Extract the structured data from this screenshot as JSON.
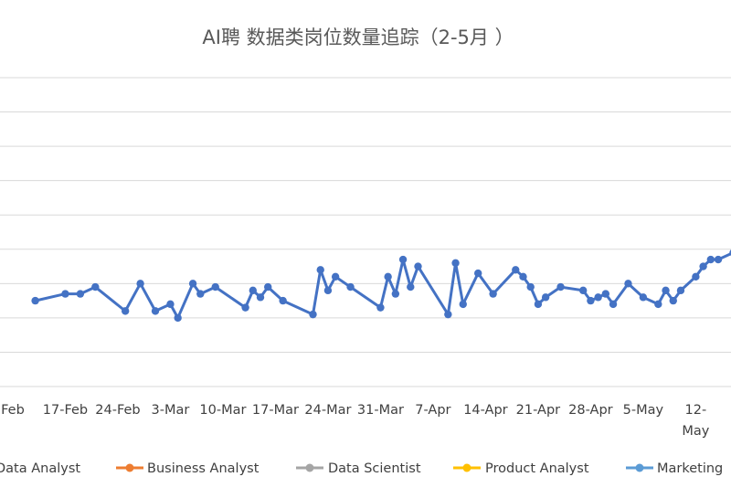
{
  "chart_data": {
    "type": "line",
    "title": "AI聘 数据类岗位数量追踪（2-5月 ）",
    "xlabel": "",
    "ylabel": "",
    "grid": true,
    "legend_position": "bottom",
    "ylim": [
      0,
      9
    ],
    "x_tick_labels": [
      "Feb",
      "17-Feb",
      "24-Feb",
      "3-Mar",
      "10-Mar",
      "17-Mar",
      "24-Mar",
      "31-Mar",
      "7-Apr",
      "14-Apr",
      "21-Apr",
      "28-Apr",
      "5-May",
      "12-\nMay"
    ],
    "x_day_range": [
      -1.7,
      95.7
    ],
    "colors": {
      "Data Analyst": "#4472C4",
      "Business Analyst": "#ED7D31",
      "Data Scientist": "#A5A5A5",
      "Product Analyst": "#FFC000",
      "Marketing": "#5B9BD5"
    },
    "series": [
      {
        "name": "Data Analyst",
        "x": [
          3,
          7,
          9,
          11,
          15,
          17,
          19,
          21,
          22,
          24,
          25,
          27,
          31,
          32,
          33,
          34,
          36,
          40,
          41,
          42,
          43,
          45,
          49,
          50,
          51,
          52,
          53,
          54,
          58,
          59,
          60,
          62,
          64,
          67,
          68,
          69,
          70,
          71,
          73,
          76,
          77,
          78,
          79,
          80,
          82,
          84,
          86,
          87,
          88,
          89,
          91,
          92,
          93,
          94,
          96
        ],
        "y": [
          2.5,
          2.7,
          2.7,
          2.9,
          2.2,
          3.0,
          2.2,
          2.4,
          2.0,
          3.0,
          2.7,
          2.9,
          2.3,
          2.8,
          2.6,
          2.9,
          2.5,
          2.1,
          3.4,
          2.8,
          3.2,
          2.9,
          2.3,
          3.2,
          2.7,
          3.7,
          2.9,
          3.5,
          2.1,
          3.6,
          2.4,
          3.3,
          2.7,
          3.4,
          3.2,
          2.9,
          2.4,
          2.6,
          2.9,
          2.8,
          2.5,
          2.6,
          2.7,
          2.4,
          3.0,
          2.6,
          2.4,
          2.8,
          2.5,
          2.8,
          3.2,
          3.5,
          3.7,
          3.7,
          3.9
        ],
        "smooth": false
      }
    ]
  }
}
